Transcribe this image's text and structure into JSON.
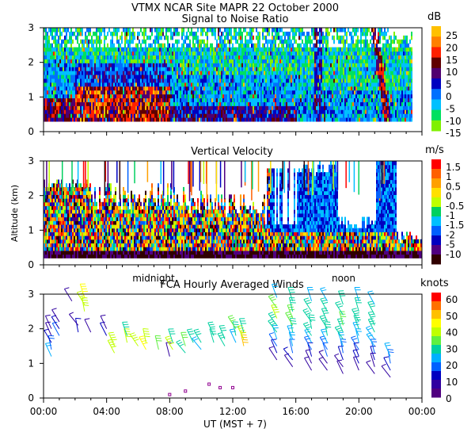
{
  "header": {
    "title": "VTMX   NCAR Site   MAPR 22 October 2000"
  },
  "chart_data": [
    {
      "id": "snr",
      "type": "heatmap",
      "title": "Signal to Noise Ratio",
      "ylabel": "",
      "ylim": [
        0,
        3
      ],
      "yticks": [
        "0",
        "1",
        "2",
        "3"
      ],
      "colorbar": {
        "unit": "dB",
        "labels": [
          "25",
          "20",
          "15",
          "10",
          "5",
          "0",
          "-5",
          "-10",
          "-15"
        ],
        "colors": [
          "#ffc000",
          "#ff8000",
          "#ff2000",
          "#600000",
          "#500070",
          "#0000c0",
          "#0070ff",
          "#00c0ff",
          "#00e060",
          "#80f000"
        ]
      }
    },
    {
      "id": "vvel",
      "type": "heatmap",
      "title": "Vertical Velocity",
      "ylabel": "Altitude (km)",
      "ylim": [
        0,
        3
      ],
      "yticks": [
        "0",
        "1",
        "2",
        "3"
      ],
      "time_markers": [
        "midnight",
        "noon"
      ],
      "colorbar": {
        "unit": "m/s",
        "labels": [
          "1.5",
          "1",
          "0.5",
          "0",
          "-0.5",
          "-1",
          "-1.5",
          "-2",
          "-5",
          "-10"
        ],
        "colors": [
          "#ff0000",
          "#ff6000",
          "#ffa000",
          "#ffe000",
          "#c0ff00",
          "#00d060",
          "#00c0ff",
          "#0060ff",
          "#0000c0",
          "#500080",
          "#300000"
        ]
      }
    },
    {
      "id": "winds",
      "type": "scatter",
      "title": "FCA Hourly Averaged Winds",
      "ylabel": "",
      "ylim": [
        0,
        3
      ],
      "yticks": [
        "0",
        "1",
        "2",
        "3"
      ],
      "xlabel": "UT    (MST + 7)",
      "xlim": [
        0,
        24
      ],
      "xtick_labels": [
        "00:00",
        "04:00",
        "08:00",
        "12:00",
        "16:00",
        "20:00",
        "00:00"
      ],
      "colorbar": {
        "unit": "knots",
        "labels": [
          "60",
          "50",
          "40",
          "30",
          "20",
          "10",
          "0"
        ],
        "colors": [
          "#ff0000",
          "#ff7000",
          "#ffc000",
          "#ffff00",
          "#c0ff00",
          "#60f040",
          "#00d0a0",
          "#00b0ff",
          "#0060ff",
          "#0000c0",
          "#3000a0",
          "#500080"
        ]
      }
    }
  ],
  "wind_profiles": [
    {
      "hour": 0.5,
      "alts": [
        1.2,
        1.4,
        1.6,
        1.8,
        2.0
      ],
      "speed": [
        22,
        18,
        12,
        8,
        6
      ]
    },
    {
      "hour": 1.0,
      "alts": [
        1.8,
        2.0,
        2.2
      ],
      "speed": [
        14,
        10,
        6
      ]
    },
    {
      "hour": 1.8,
      "alts": [
        2.8
      ],
      "speed": [
        8
      ]
    },
    {
      "hour": 2.2,
      "alts": [
        1.9,
        2.1
      ],
      "speed": [
        9,
        6
      ]
    },
    {
      "hour": 2.6,
      "alts": [
        2.5,
        2.7,
        2.9
      ],
      "speed": [
        38,
        40,
        42
      ]
    },
    {
      "hour": 3.0,
      "alts": [
        1.9
      ],
      "speed": [
        8
      ]
    },
    {
      "hour": 4.0,
      "alts": [
        1.8,
        2.0
      ],
      "speed": [
        9,
        7
      ]
    },
    {
      "hour": 4.5,
      "alts": [
        1.3,
        1.5
      ],
      "speed": [
        38,
        40
      ]
    },
    {
      "hour": 5.3,
      "alts": [
        1.6,
        1.8
      ],
      "speed": [
        36,
        30
      ]
    },
    {
      "hour": 6.0,
      "alts": [
        1.5
      ],
      "speed": [
        38
      ]
    },
    {
      "hour": 6.5,
      "alts": [
        1.4,
        1.6
      ],
      "speed": [
        42,
        36
      ]
    },
    {
      "hour": 7.3,
      "alts": [
        1.4
      ],
      "speed": [
        34
      ]
    },
    {
      "hour": 8.0,
      "alts": [
        1.2
      ],
      "speed": [
        8
      ]
    },
    {
      "hour": 8.2,
      "alts": [
        1.4,
        1.6
      ],
      "speed": [
        36,
        30
      ]
    },
    {
      "hour": 9.0,
      "alts": [
        1.3,
        1.5
      ],
      "speed": [
        28,
        34
      ]
    },
    {
      "hour": 9.5,
      "alts": [
        1.6
      ],
      "speed": [
        26
      ]
    },
    {
      "hour": 10.0,
      "alts": [
        1.4,
        1.6
      ],
      "speed": [
        22,
        28
      ]
    },
    {
      "hour": 10.8,
      "alts": [
        1.6,
        1.8
      ],
      "speed": [
        28,
        30
      ]
    },
    {
      "hour": 11.5,
      "alts": [
        1.5,
        1.7
      ],
      "speed": [
        26,
        30
      ]
    },
    {
      "hour": 12.2,
      "alts": [
        1.6,
        1.8,
        2.0
      ],
      "speed": [
        20,
        28,
        34
      ]
    },
    {
      "hour": 12.7,
      "alts": [
        1.5,
        1.7,
        1.9
      ],
      "speed": [
        48,
        36,
        30
      ]
    },
    {
      "hour": 14.8,
      "alts": [
        1.1,
        1.3,
        1.5,
        1.7,
        1.9,
        2.1,
        2.3,
        2.6,
        2.9
      ],
      "speed": [
        8,
        10,
        14,
        20,
        26,
        30,
        36,
        32,
        24
      ]
    },
    {
      "hour": 15.8,
      "alts": [
        0.9,
        1.1,
        1.3,
        1.5,
        1.7,
        1.9,
        2.1,
        2.3,
        2.5,
        2.8
      ],
      "speed": [
        6,
        10,
        14,
        20,
        24,
        28,
        32,
        34,
        30,
        26
      ]
    },
    {
      "hour": 17.0,
      "alts": [
        0.8,
        1.0,
        1.2,
        1.4,
        1.6,
        1.8,
        2.0,
        2.2,
        2.5,
        2.8
      ],
      "speed": [
        6,
        8,
        12,
        18,
        22,
        26,
        28,
        30,
        26,
        22
      ]
    },
    {
      "hour": 18.0,
      "alts": [
        0.8,
        1.0,
        1.2,
        1.4,
        1.6,
        1.8,
        2.0,
        2.2,
        2.5,
        2.8
      ],
      "speed": [
        6,
        8,
        14,
        18,
        22,
        26,
        28,
        30,
        28,
        22
      ]
    },
    {
      "hour": 19.0,
      "alts": [
        0.7,
        0.9,
        1.1,
        1.3,
        1.5,
        1.7,
        1.9,
        2.1,
        2.4,
        2.7
      ],
      "speed": [
        6,
        8,
        12,
        16,
        22,
        26,
        28,
        32,
        30,
        26
      ]
    },
    {
      "hour": 20.0,
      "alts": [
        0.8,
        1.0,
        1.2,
        1.4,
        1.6,
        1.8,
        2.0,
        2.2,
        2.5,
        2.8
      ],
      "speed": [
        6,
        10,
        12,
        16,
        20,
        24,
        28,
        30,
        28,
        24
      ]
    },
    {
      "hour": 21.0,
      "alts": [
        0.7,
        0.9,
        1.1,
        1.3,
        1.5,
        1.7,
        1.9,
        2.1,
        2.4,
        2.7
      ],
      "speed": [
        6,
        8,
        12,
        16,
        20,
        24,
        28,
        30,
        26,
        22
      ]
    },
    {
      "hour": 22.0,
      "alts": [
        0.6,
        0.8,
        1.0,
        1.2
      ],
      "speed": [
        8,
        12,
        16,
        20
      ]
    }
  ]
}
